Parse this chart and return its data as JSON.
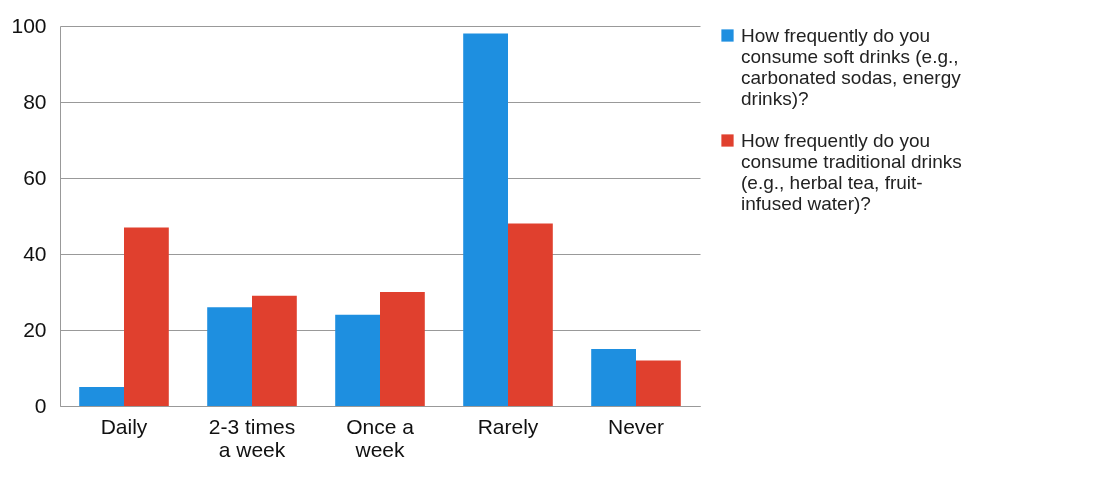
{
  "chart_data": {
    "type": "bar",
    "categories": [
      "Daily",
      "2-3 times a week",
      "Once a week",
      "Rarely",
      "Never"
    ],
    "series": [
      {
        "name": "How frequently do you consume soft drinks (e.g., carbonated sodas, energy drinks)?",
        "color": "#1e8fe0",
        "values": [
          5,
          26,
          24,
          98,
          15
        ]
      },
      {
        "name": "How frequently do you consume traditional drinks (e.g., herbal tea, fruit-infused water)?",
        "color": "#e0402e",
        "values": [
          47,
          29,
          30,
          48,
          12
        ]
      }
    ],
    "ylim": [
      0,
      100
    ],
    "yticks": [
      0,
      20,
      40,
      60,
      80,
      100
    ],
    "grid": "y",
    "legend": "right"
  }
}
